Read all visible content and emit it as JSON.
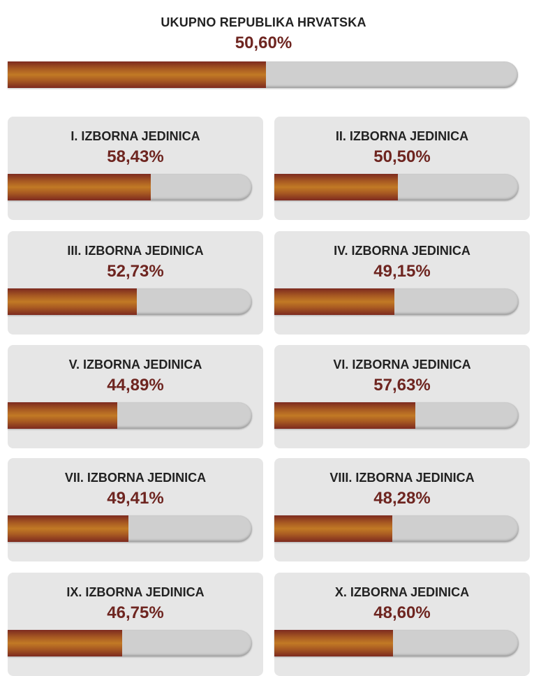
{
  "total": {
    "title": "UKUPNO REPUBLIKA HRVATSKA",
    "value": "50,60%",
    "fraction": 0.506
  },
  "units": [
    {
      "title": "I. IZBORNA JEDINICA",
      "value": "58,43%",
      "fraction": 0.5843
    },
    {
      "title": "II. IZBORNA JEDINICA",
      "value": "50,50%",
      "fraction": 0.505
    },
    {
      "title": "III. IZBORNA JEDINICA",
      "value": "52,73%",
      "fraction": 0.5273
    },
    {
      "title": "IV. IZBORNA JEDINICA",
      "value": "49,15%",
      "fraction": 0.4915
    },
    {
      "title": "V. IZBORNA JEDINICA",
      "value": "44,89%",
      "fraction": 0.4489
    },
    {
      "title": "VI. IZBORNA JEDINICA",
      "value": "57,63%",
      "fraction": 0.5763
    },
    {
      "title": "VII. IZBORNA JEDINICA",
      "value": "49,41%",
      "fraction": 0.4941
    },
    {
      "title": "VIII. IZBORNA JEDINICA",
      "value": "48,28%",
      "fraction": 0.4828
    },
    {
      "title": "IX. IZBORNA JEDINICA",
      "value": "46,75%",
      "fraction": 0.4675
    },
    {
      "title": "X. IZBORNA JEDINICA",
      "value": "48,60%",
      "fraction": 0.486
    }
  ],
  "colors": {
    "fill_dark": "#7d2a1f",
    "fill_light": "#c27a25",
    "track": "#cfcfcf",
    "card_bg": "#e6e6e6",
    "value_text": "#6e2520",
    "title_text": "#222222"
  }
}
